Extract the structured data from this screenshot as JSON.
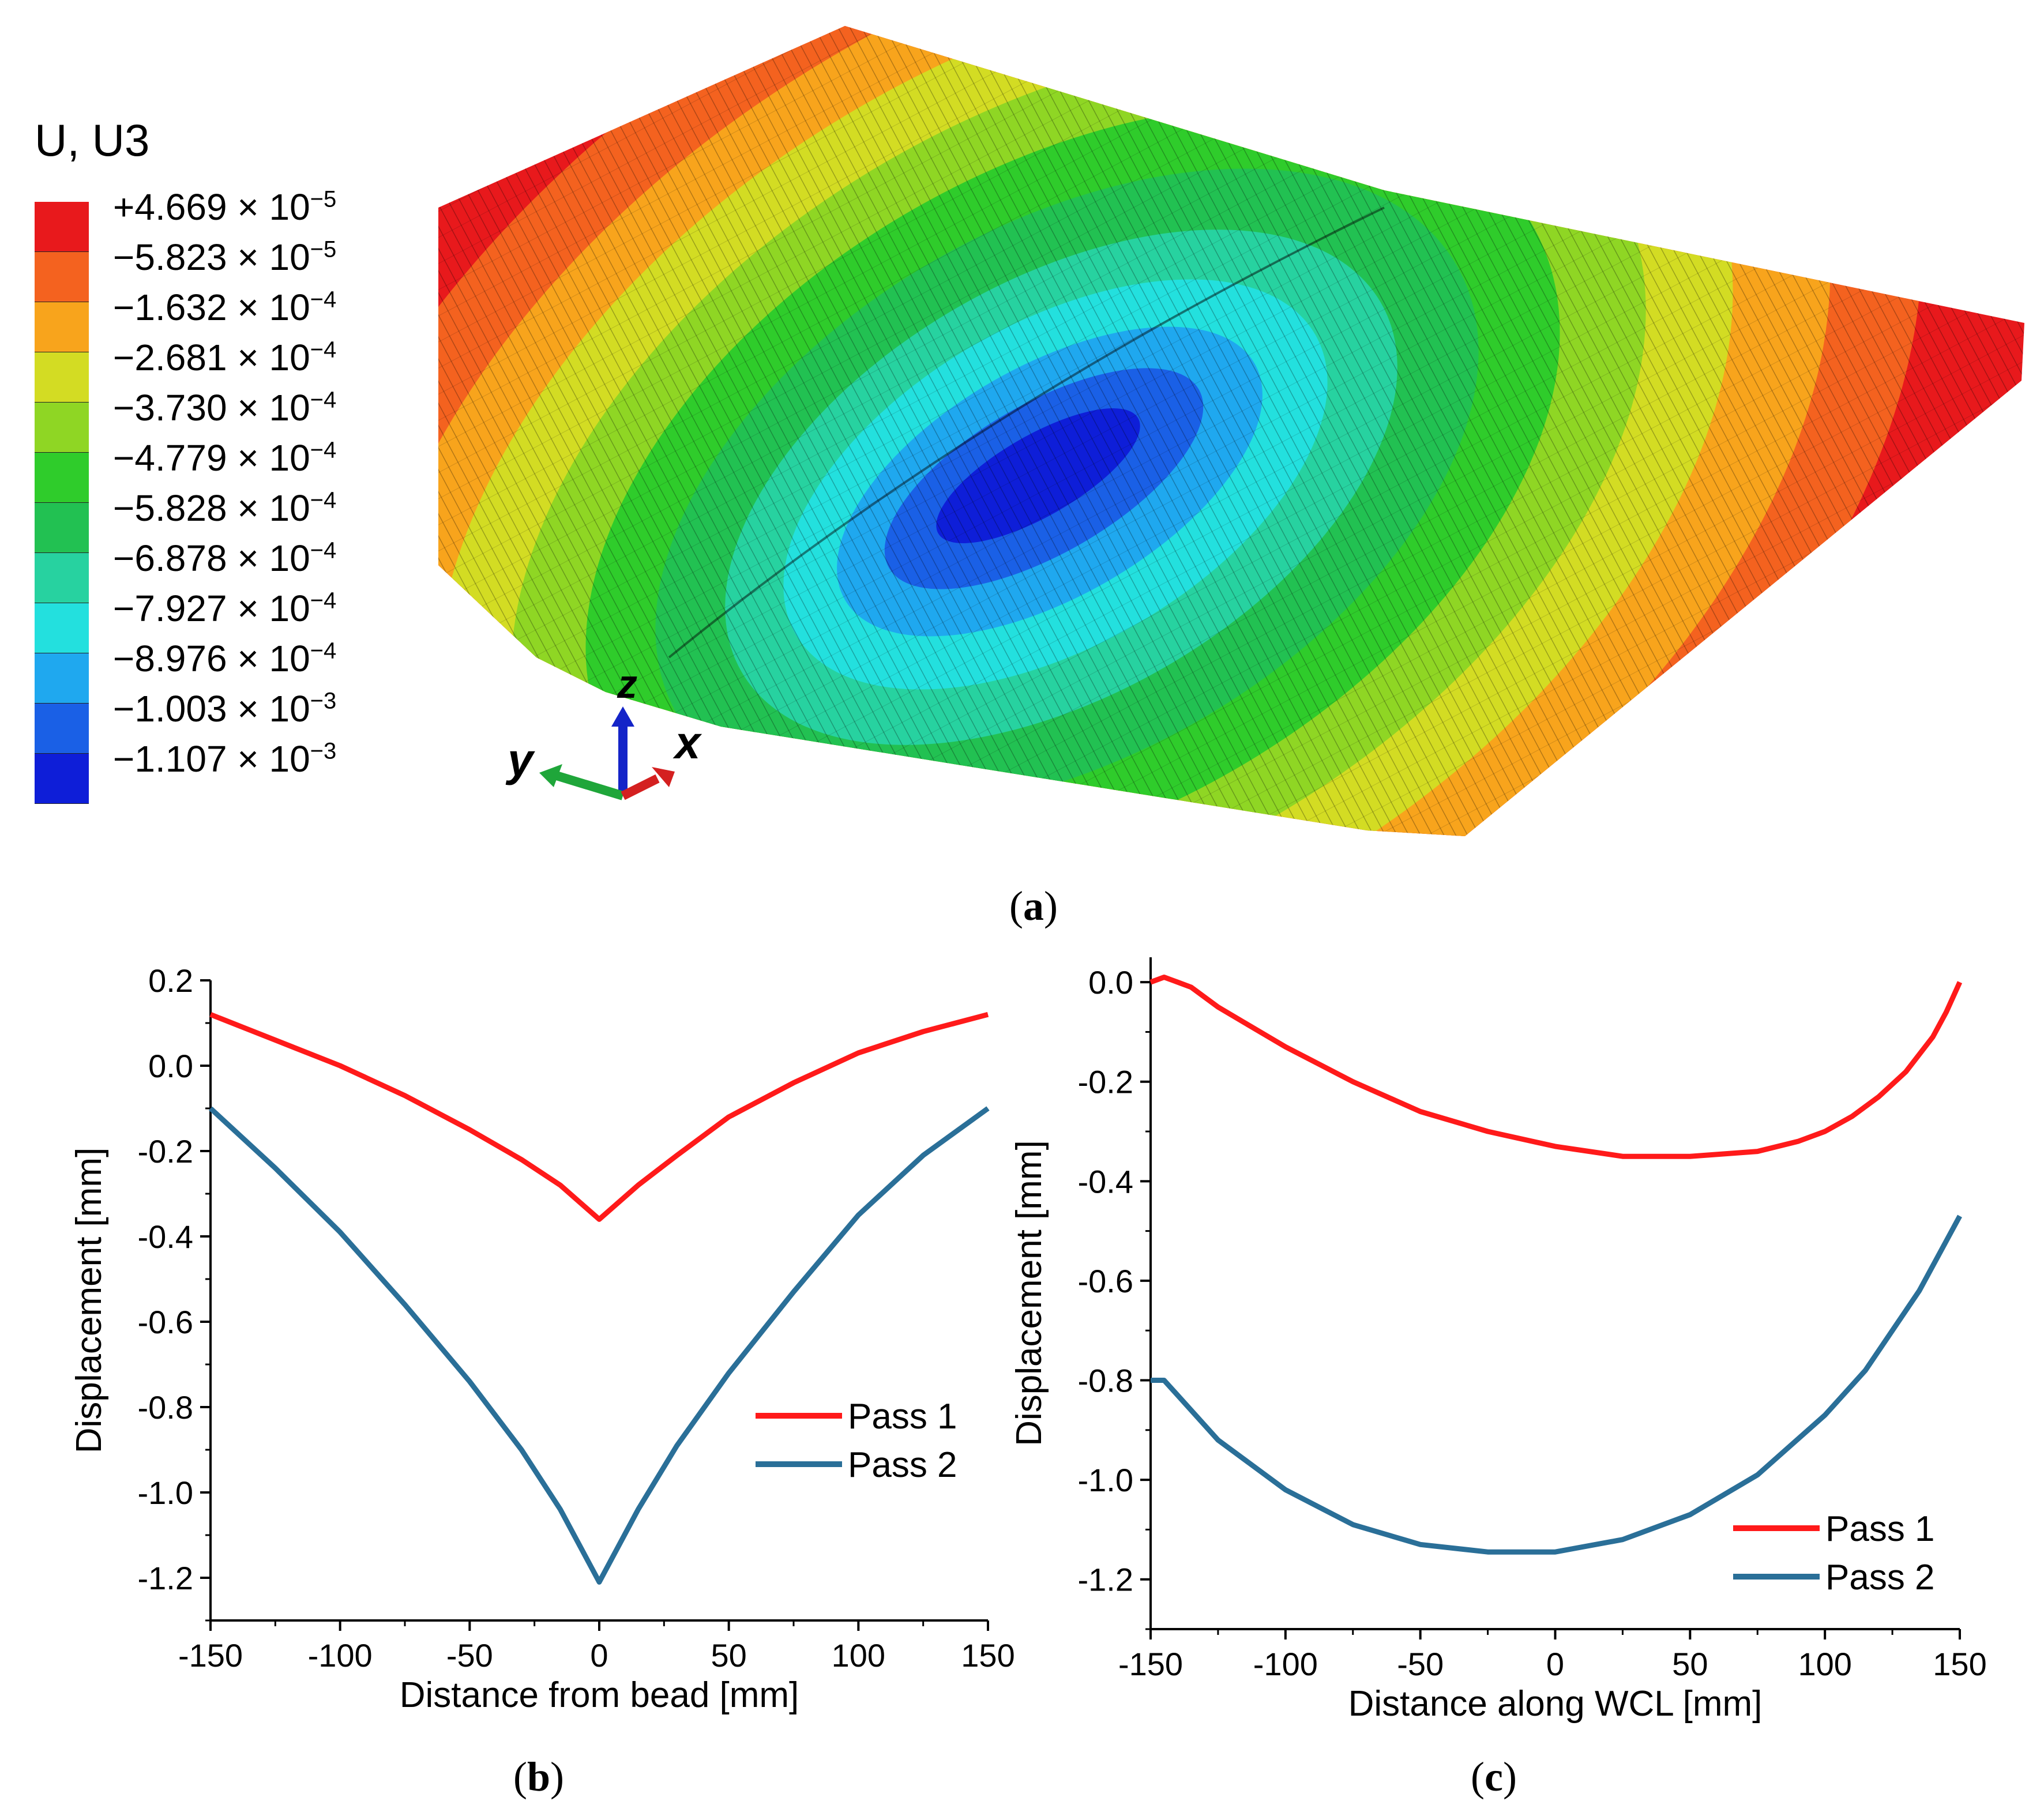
{
  "panel_a": {
    "caption_letter": "a",
    "legend_title": "U, U3",
    "legend_colors": [
      "#e8191c",
      "#f4621f",
      "#f8a41c",
      "#d3dc23",
      "#8fd624",
      "#2fcc2b",
      "#22c152",
      "#27d2a0",
      "#23e0de",
      "#1fa8ef",
      "#1a60e6",
      "#0e1ed8"
    ],
    "legend_levels": [
      {
        "mantissa": "+4.669",
        "exp": "-5"
      },
      {
        "mantissa": "−5.823",
        "exp": "-5"
      },
      {
        "mantissa": "−1.632",
        "exp": "-4"
      },
      {
        "mantissa": "−2.681",
        "exp": "-4"
      },
      {
        "mantissa": "−3.730",
        "exp": "-4"
      },
      {
        "mantissa": "−4.779",
        "exp": "-4"
      },
      {
        "mantissa": "−5.828",
        "exp": "-4"
      },
      {
        "mantissa": "−6.878",
        "exp": "-4"
      },
      {
        "mantissa": "−7.927",
        "exp": "-4"
      },
      {
        "mantissa": "−8.976",
        "exp": "-4"
      },
      {
        "mantissa": "−1.003",
        "exp": "-3"
      },
      {
        "mantissa": "−1.107",
        "exp": "-3"
      }
    ],
    "legend_multiplier": "× 10",
    "axis_triad": {
      "x": "x",
      "y": "y",
      "z": "z"
    }
  },
  "panel_b_caption": "b",
  "panel_c_caption": "c",
  "chart_data": [
    {
      "type": "line",
      "panel": "b",
      "xlabel": "Distance from bead [mm]",
      "ylabel": "Displacement [mm]",
      "xlim": [
        -150,
        150
      ],
      "ylim": [
        -1.3,
        0.2
      ],
      "xticks": [
        -150,
        -100,
        -50,
        0,
        50,
        100,
        150
      ],
      "xtick_labels": [
        "-150",
        "-100",
        "-50",
        "0",
        "50",
        "100",
        "150"
      ],
      "yticks": [
        0.2,
        0.0,
        -0.2,
        -0.4,
        -0.6,
        -0.8,
        -1.0,
        -1.2
      ],
      "ytick_labels": [
        "0.2",
        "0.0",
        "-0.2",
        "-0.4",
        "-0.6",
        "-0.8",
        "-1.0",
        "-1.2"
      ],
      "legend_position": "center-right",
      "series": [
        {
          "name": "Pass 1",
          "color": "#ff1a1a",
          "x": [
            -150,
            -125,
            -100,
            -75,
            -50,
            -30,
            -15,
            0,
            15,
            30,
            50,
            75,
            100,
            125,
            150
          ],
          "y": [
            0.12,
            0.06,
            0.0,
            -0.07,
            -0.15,
            -0.22,
            -0.28,
            -0.36,
            -0.28,
            -0.21,
            -0.12,
            -0.04,
            0.03,
            0.08,
            0.12
          ]
        },
        {
          "name": "Pass 2",
          "color": "#2a6f98",
          "x": [
            -150,
            -125,
            -100,
            -75,
            -50,
            -30,
            -15,
            0,
            15,
            30,
            50,
            75,
            100,
            125,
            150
          ],
          "y": [
            -0.1,
            -0.24,
            -0.39,
            -0.56,
            -0.74,
            -0.9,
            -1.04,
            -1.21,
            -1.04,
            -0.89,
            -0.72,
            -0.53,
            -0.35,
            -0.21,
            -0.1
          ]
        }
      ]
    },
    {
      "type": "line",
      "panel": "c",
      "xlabel": "Distance along WCL [mm]",
      "ylabel": "Displacement [mm]",
      "xlim": [
        -150,
        150
      ],
      "ylim": [
        -1.3,
        0.05
      ],
      "xticks": [
        -150,
        -100,
        -50,
        0,
        50,
        100,
        150
      ],
      "xtick_labels": [
        "-150",
        "-100",
        "-50",
        "0",
        "50",
        "100",
        "150"
      ],
      "yticks": [
        0.0,
        -0.2,
        -0.4,
        -0.6,
        -0.8,
        -1.0,
        -1.2
      ],
      "ytick_labels": [
        "0.0",
        "-0.2",
        "-0.4",
        "-0.6",
        "-0.8",
        "-1.0",
        "-1.2"
      ],
      "legend_position": "bottom-right",
      "series": [
        {
          "name": "Pass 1",
          "color": "#ff1a1a",
          "x": [
            -150,
            -145,
            -140,
            -135,
            -125,
            -100,
            -75,
            -50,
            -25,
            0,
            25,
            50,
            75,
            90,
            100,
            110,
            120,
            130,
            140,
            145,
            150
          ],
          "y": [
            0.0,
            0.01,
            0.0,
            -0.01,
            -0.05,
            -0.13,
            -0.2,
            -0.26,
            -0.3,
            -0.33,
            -0.35,
            -0.35,
            -0.34,
            -0.32,
            -0.3,
            -0.27,
            -0.23,
            -0.18,
            -0.11,
            -0.06,
            0.0
          ]
        },
        {
          "name": "Pass 2",
          "color": "#2a6f98",
          "x": [
            -150,
            -145,
            -140,
            -125,
            -100,
            -75,
            -50,
            -25,
            0,
            25,
            50,
            75,
            100,
            115,
            125,
            135,
            145,
            150
          ],
          "y": [
            -0.8,
            -0.8,
            -0.83,
            -0.92,
            -1.02,
            -1.09,
            -1.13,
            -1.145,
            -1.145,
            -1.12,
            -1.07,
            -0.99,
            -0.87,
            -0.78,
            -0.7,
            -0.62,
            -0.52,
            -0.47
          ]
        }
      ]
    }
  ]
}
